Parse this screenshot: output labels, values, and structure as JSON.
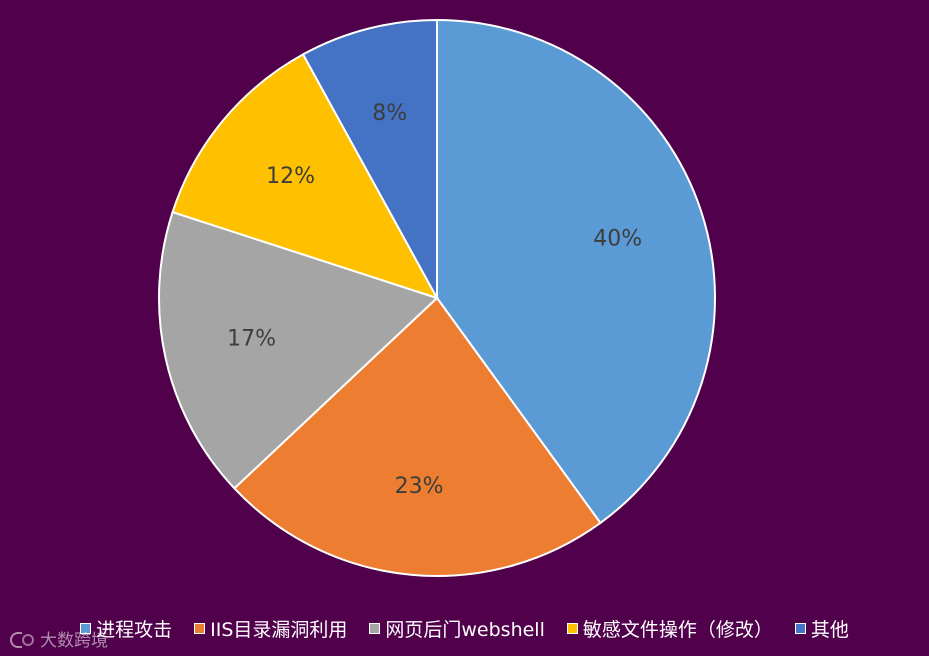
{
  "chart_data": {
    "type": "pie",
    "categories": [
      "进程攻击",
      "IIS目录漏洞利用",
      "网页后门webshell",
      "敏感文件操作（修改）",
      "其他"
    ],
    "values": [
      40,
      23,
      17,
      12,
      8
    ],
    "labels": [
      "40%",
      "23%",
      "17%",
      "12%",
      "8%"
    ],
    "colors": [
      "#5b9bd5",
      "#ed7d31",
      "#a5a5a5",
      "#ffc000",
      "#4472c4"
    ],
    "title": "",
    "legend_position": "bottom",
    "start_angle_deg": 0,
    "direction": "clockwise"
  },
  "watermark": {
    "text": "大数跨境"
  },
  "background_color": "#51004c"
}
